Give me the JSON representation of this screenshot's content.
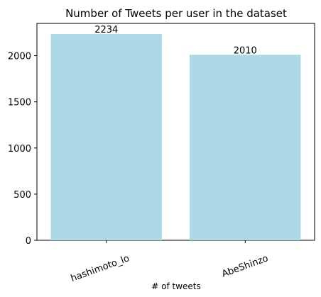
{
  "chart_data": {
    "type": "bar",
    "title": "Number of Tweets per user in the dataset",
    "xlabel": "# of tweets",
    "ylabel": "",
    "categories": [
      "hashimoto_lo",
      "AbeShinzo"
    ],
    "values": [
      2234,
      2010
    ],
    "data_labels": [
      "2234",
      "2010"
    ],
    "ylim": [
      0,
      2350
    ],
    "yticks": [
      0,
      500,
      1000,
      1500,
      2000
    ],
    "ytick_labels": [
      "0",
      "500",
      "1000",
      "1500",
      "2000"
    ],
    "xtick_rotation": "rotated",
    "grid": false,
    "legend": "none",
    "bar_color": "#add8e6"
  }
}
